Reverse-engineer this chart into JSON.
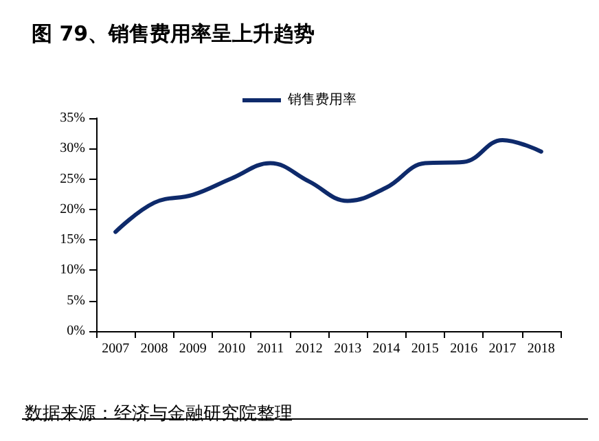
{
  "chart_data": {
    "type": "line",
    "title": "图 79、销售费用率呈上升趋势",
    "categories": [
      "2007",
      "2008",
      "2009",
      "2010",
      "2011",
      "2012",
      "2013",
      "2014",
      "2015",
      "2016",
      "2017",
      "2018"
    ],
    "series": [
      {
        "name": "销售费用率",
        "color": "#0e2a6b",
        "values": [
          16.3,
          21.1,
          22.4,
          25.1,
          27.6,
          24.6,
          21.4,
          23.6,
          27.6,
          27.8,
          31.4,
          29.5
        ]
      }
    ],
    "ylim": [
      0,
      35
    ],
    "yticks": [
      {
        "value": 0,
        "label": "0%"
      },
      {
        "value": 5,
        "label": "5%"
      },
      {
        "value": 10,
        "label": "10%"
      },
      {
        "value": 15,
        "label": "15%"
      },
      {
        "value": 20,
        "label": "20%"
      },
      {
        "value": 25,
        "label": "25%"
      },
      {
        "value": 30,
        "label": "30%"
      },
      {
        "value": 35,
        "label": "35%"
      }
    ],
    "grid": false,
    "legend": "top",
    "marker": "none",
    "line_style": "solid",
    "annotations": [
      "数据来源：经济与金融研究院整理"
    ]
  }
}
